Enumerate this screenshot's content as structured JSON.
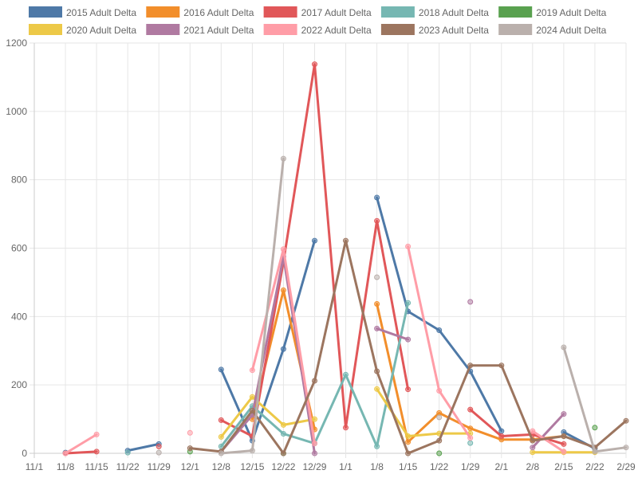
{
  "chart_data": {
    "type": "line",
    "title": "",
    "xlabel": "",
    "ylabel": "",
    "ylim": [
      0,
      1200
    ],
    "yticks": [
      0,
      200,
      400,
      600,
      800,
      1000,
      1200
    ],
    "xticks": [
      "11/1",
      "11/8",
      "11/15",
      "11/22",
      "11/29",
      "12/1",
      "12/8",
      "12/15",
      "12/22",
      "12/29",
      "1/1",
      "1/8",
      "1/15",
      "1/22",
      "1/29",
      "2/1",
      "2/8",
      "2/15",
      "2/22",
      "2/29"
    ],
    "grid": true,
    "legend_position": "top",
    "series": [
      {
        "name": "2015 Adult Delta",
        "color": "#4e79a7",
        "points": [
          [
            1,
            2
          ],
          [
            3,
            8
          ],
          [
            4,
            27
          ],
          [
            6,
            245
          ],
          [
            7,
            37
          ],
          [
            8,
            305
          ],
          [
            9,
            622
          ],
          [
            11,
            748
          ],
          [
            12,
            415
          ],
          [
            13,
            360
          ],
          [
            14,
            240
          ],
          [
            15,
            65
          ],
          [
            17,
            62
          ],
          [
            18,
            14
          ]
        ]
      },
      {
        "name": "2016 Adult Delta",
        "color": "#f28e2b",
        "points": [
          [
            7,
            100
          ],
          [
            8,
            477
          ],
          [
            9,
            70
          ],
          [
            11,
            437
          ],
          [
            12,
            33
          ],
          [
            13,
            118
          ],
          [
            14,
            73
          ],
          [
            15,
            40
          ],
          [
            16,
            40
          ],
          [
            17,
            50
          ]
        ]
      },
      {
        "name": "2017 Adult Delta",
        "color": "#e15759",
        "points": [
          [
            1,
            0
          ],
          [
            2,
            5
          ],
          [
            4,
            20
          ],
          [
            6,
            97
          ],
          [
            7,
            50
          ],
          [
            8,
            560
          ],
          [
            9,
            1138
          ],
          [
            10,
            75
          ],
          [
            11,
            680
          ],
          [
            12,
            187
          ],
          [
            14,
            128
          ],
          [
            15,
            50
          ],
          [
            16,
            55
          ],
          [
            17,
            27
          ]
        ]
      },
      {
        "name": "2018 Adult Delta",
        "color": "#76b7b2",
        "points": [
          [
            3,
            2
          ],
          [
            6,
            20
          ],
          [
            7,
            138
          ],
          [
            8,
            57
          ],
          [
            9,
            29
          ],
          [
            10,
            230
          ],
          [
            11,
            20
          ],
          [
            12,
            440
          ],
          [
            14,
            30
          ]
        ]
      },
      {
        "name": "2019 Adult Delta",
        "color": "#59a14f",
        "points": [
          [
            5,
            5
          ],
          [
            8,
            0
          ],
          [
            13,
            0
          ],
          [
            18,
            75
          ]
        ]
      },
      {
        "name": "2020 Adult Delta",
        "color": "#edc948",
        "points": [
          [
            6,
            48
          ],
          [
            7,
            165
          ],
          [
            8,
            83
          ],
          [
            9,
            100
          ],
          [
            11,
            188
          ],
          [
            12,
            50
          ],
          [
            13,
            58
          ],
          [
            14,
            58
          ],
          [
            16,
            3
          ],
          [
            17,
            3
          ],
          [
            18,
            3
          ]
        ]
      },
      {
        "name": "2021 Adult Delta",
        "color": "#b07aa1",
        "points": [
          [
            6,
            5
          ],
          [
            7,
            112
          ],
          [
            8,
            575
          ],
          [
            9,
            0
          ],
          [
            11,
            365
          ],
          [
            12,
            333
          ],
          [
            14,
            443
          ],
          [
            16,
            17
          ],
          [
            17,
            115
          ]
        ]
      },
      {
        "name": "2022 Adult Delta",
        "color": "#ff9da7",
        "points": [
          [
            1,
            0
          ],
          [
            2,
            55
          ],
          [
            5,
            60
          ],
          [
            7,
            243
          ],
          [
            8,
            597
          ],
          [
            9,
            29
          ],
          [
            12,
            605
          ],
          [
            13,
            183
          ],
          [
            14,
            45
          ],
          [
            16,
            65
          ],
          [
            17,
            5
          ]
        ]
      },
      {
        "name": "2023 Adult Delta",
        "color": "#9c755f",
        "points": [
          [
            5,
            15
          ],
          [
            6,
            5
          ],
          [
            7,
            125
          ],
          [
            8,
            0
          ],
          [
            9,
            212
          ],
          [
            10,
            622
          ],
          [
            11,
            240
          ],
          [
            12,
            0
          ],
          [
            13,
            37
          ],
          [
            14,
            257
          ],
          [
            15,
            257
          ],
          [
            16,
            37
          ],
          [
            17,
            50
          ],
          [
            18,
            17
          ],
          [
            19,
            95
          ]
        ]
      },
      {
        "name": "2024 Adult Delta",
        "color": "#bab0ac",
        "points": [
          [
            4,
            2
          ],
          [
            6,
            0
          ],
          [
            7,
            8
          ],
          [
            8,
            862
          ],
          [
            11,
            515
          ],
          [
            13,
            105
          ],
          [
            17,
            310
          ],
          [
            18,
            5
          ],
          [
            19,
            17
          ]
        ]
      }
    ]
  }
}
